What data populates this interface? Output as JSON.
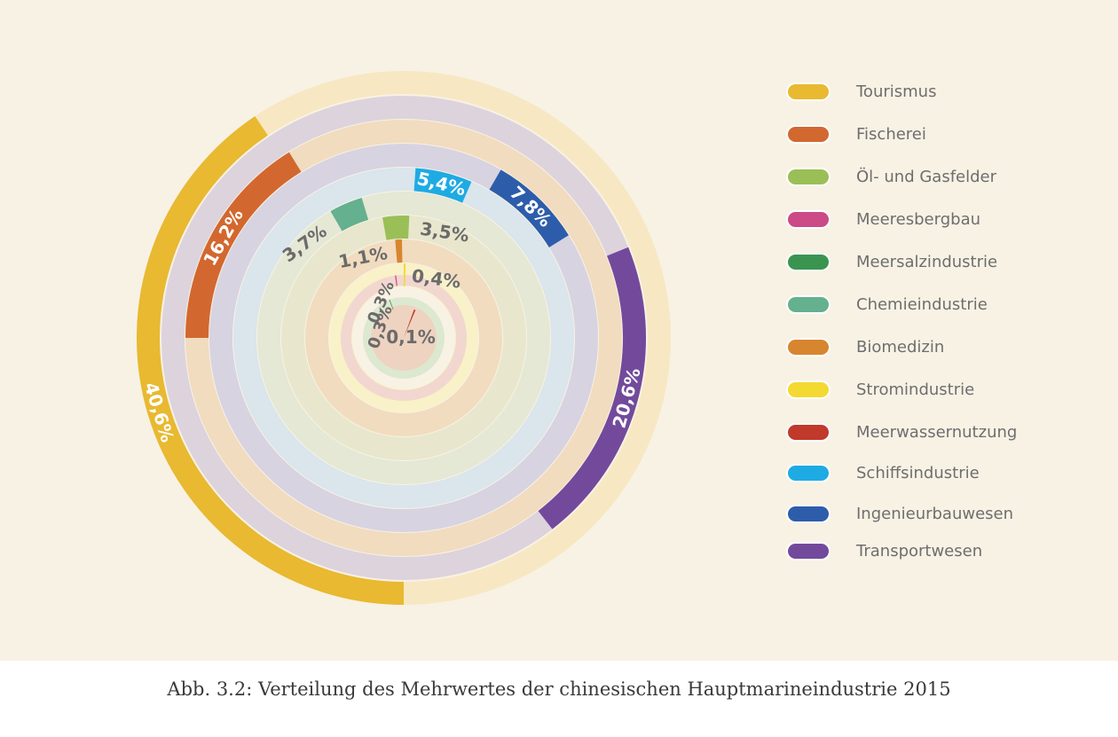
{
  "caption": "Abb. 3.2: Verteilung des Mehrwertes der chinesischen Hauptmarineindustrie 2015",
  "chart_data": {
    "type": "concentric-ring",
    "unit": "%",
    "series": [
      {
        "name": "Tourismus",
        "value": 40.6,
        "label": "40,6%",
        "color": "#e8b931"
      },
      {
        "name": "Fischerei",
        "value": 16.2,
        "label": "16,2%",
        "color": "#d2682f"
      },
      {
        "name": "Öl- und Gasfelder",
        "value": 3.5,
        "label": "3,5%",
        "color": "#9bbf57"
      },
      {
        "name": "Meeresbergbau",
        "value": 0.3,
        "label": "0,3%",
        "color": "#cc4a85"
      },
      {
        "name": "Meersalzindustrie",
        "value": 0.3,
        "label": "0,3%",
        "color": "#3a9450"
      },
      {
        "name": "Chemieindustrie",
        "value": 3.7,
        "label": "3,7%",
        "color": "#65b08e"
      },
      {
        "name": "Biomedizin",
        "value": 1.1,
        "label": "1,1%",
        "color": "#d8852f"
      },
      {
        "name": "Stromindustrie",
        "value": 0.4,
        "label": "0,4%",
        "color": "#f3d932"
      },
      {
        "name": "Meerwassernutzung",
        "value": 0.1,
        "label": "0,1%",
        "color": "#c0392b"
      },
      {
        "name": "Schiffsindustrie",
        "value": 5.4,
        "label": "5,4%",
        "color": "#1eabe3"
      },
      {
        "name": "Ingenieurbauwesen",
        "value": 7.8,
        "label": "7,8%",
        "color": "#2d5daa"
      },
      {
        "name": "Transportwesen",
        "value": 20.6,
        "label": "20,6%",
        "color": "#734a9b"
      }
    ]
  }
}
